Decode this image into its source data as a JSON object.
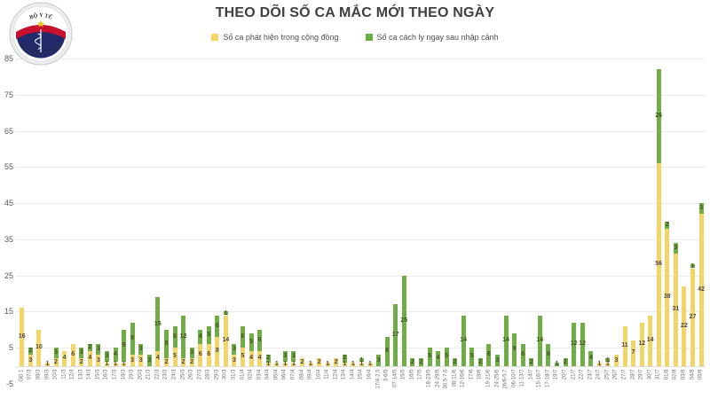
{
  "header": {
    "title": "THEO DÕI SỐ CA MẮC MỚI THEO NGÀY",
    "logo": {
      "top_text": "BỘ Y TẾ",
      "bottom_text": "MINISTRY OF HEALTH"
    }
  },
  "legend": {
    "community_label": "Số ca phát hiện trong cộng đồng",
    "quarantine_label": "Số ca cách ly ngay sau nhập cảnh"
  },
  "colors": {
    "community": "#f3d567",
    "quarantine": "#70ad47",
    "community_value_text": "#4c4a40",
    "quarantine_value_text": "#45521f",
    "title_text": "#3f3f3f",
    "logo_red": "#c8102e",
    "logo_navy": "#232a6b",
    "logo_star": "#f6c21c"
  },
  "chart_data": {
    "type": "bar",
    "stacked": true,
    "title": "THEO DÕI SỐ CA MẮC MỚI THEO NGÀY",
    "xlabel": "",
    "ylabel": "",
    "ylim": [
      -5,
      85
    ],
    "y_ticks": [
      85,
      75,
      65,
      55,
      45,
      35,
      25,
      15,
      5,
      -5
    ],
    "grid": true,
    "legend_position": "top",
    "categories": [
      "GĐ 1",
      "07/3",
      "08/3",
      "09/3",
      "10/3",
      "11/3",
      "12/3",
      "13/3",
      "14/3",
      "15/3",
      "16/3",
      "17/3",
      "18/3",
      "19/3",
      "20/3",
      "21/3",
      "22/3",
      "23/3",
      "24/3",
      "25/3",
      "26/3",
      "27/3",
      "28/3",
      "29/3",
      "30/3",
      "31/3",
      "01/4",
      "02/4",
      "03/4",
      "04/4",
      "05/4",
      "06/4",
      "07/4",
      "08/4",
      "09/4",
      "10/4",
      "11/4",
      "12/4",
      "13/4",
      "14/4",
      "15/4",
      "16/4",
      "17/4-2.5",
      "3-6/5",
      "07-14/5",
      "15/5",
      "16/5",
      "17/5",
      "18-23/5",
      "24-29/5",
      "30.5-7.6",
      "08-11/6",
      "12-16/6",
      "17/6",
      "18/6",
      "19-21/6",
      "24-25/6",
      "26/6-5.7",
      "06-10/7",
      "11-13/7",
      "14/7",
      "15-16/7",
      "17-18/7",
      "19/7",
      "20/7",
      "21/7",
      "22/7",
      "23/7",
      "24/7",
      "25/7",
      "26/7",
      "27/7",
      "28/7",
      "29/7",
      "30/7",
      "31/7",
      "01/8",
      "02/8",
      "03/8",
      "04/8",
      "05/8"
    ],
    "series": [
      {
        "name": "Số ca phát hiện trong cộng đồng",
        "color": "#f3d567",
        "values": [
          16,
          3,
          10,
          1,
          2,
          4,
          6,
          2,
          4,
          3,
          1,
          1,
          1,
          3,
          3,
          0,
          4,
          2,
          5,
          2,
          2,
          6,
          6,
          8,
          14,
          3,
          5,
          4,
          4,
          1,
          1,
          1,
          1,
          2,
          1,
          2,
          1,
          2,
          1,
          1,
          1,
          1,
          0,
          0,
          0,
          0,
          0,
          0,
          0,
          0,
          0,
          0,
          0,
          0,
          0,
          0,
          0,
          0,
          0,
          0,
          0,
          0,
          0,
          0,
          0,
          0,
          0,
          0,
          1,
          1,
          3,
          11,
          7,
          12,
          14,
          56,
          38,
          31,
          22,
          27,
          42
        ]
      },
      {
        "name": "Số ca cách ly ngay sau nhập cảnh",
        "color": "#70ad47",
        "values": [
          0,
          2,
          0,
          0,
          3,
          0,
          0,
          3,
          2,
          3,
          3,
          4,
          9,
          9,
          3,
          3,
          15,
          8,
          6,
          12,
          3,
          4,
          5,
          6,
          1,
          3,
          6,
          5,
          6,
          2,
          0,
          3,
          3,
          0,
          0,
          0,
          0,
          0,
          2,
          0,
          1,
          0,
          3,
          8,
          17,
          25,
          2,
          2,
          5,
          4,
          5,
          2,
          14,
          5,
          2,
          6,
          3,
          14,
          9,
          6,
          2,
          14,
          6,
          1,
          2,
          12,
          12,
          4,
          0,
          1,
          0,
          0,
          0,
          0,
          0,
          26,
          2,
          3,
          0,
          1,
          3
        ]
      }
    ]
  }
}
